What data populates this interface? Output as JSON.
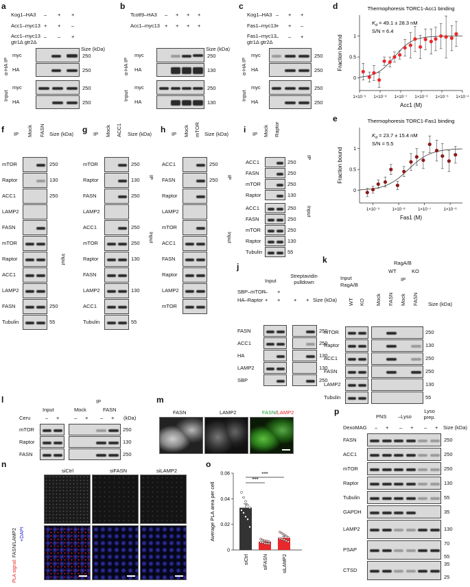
{
  "panel_letters": {
    "a": "a",
    "b": "b",
    "c": "c",
    "d": "d",
    "e": "e",
    "f": "f",
    "g": "g",
    "h": "h",
    "i": "i",
    "j": "j",
    "k": "k",
    "l": "l",
    "m": "m",
    "n": "n",
    "o": "o",
    "p": "p"
  },
  "common": {
    "size_kda": "Size (kDa)",
    "kda": "(kDa)",
    "ip": "IP",
    "input": "Input",
    "mock": "Mock",
    "minus": "–",
    "plus": "+"
  },
  "panel_a": {
    "ip_label": "α-HA IP",
    "rows": [
      "Kog1–HA3",
      "Acc1–myc13",
      "Acc1–myc13 gtr1Δ gtr2Δ"
    ],
    "signs": [
      [
        "–",
        "+",
        "+"
      ],
      [
        "+",
        "+",
        "–"
      ],
      [
        "–",
        "–",
        "+"
      ]
    ],
    "blots": [
      "myc",
      "HA",
      "myc",
      "HA"
    ],
    "sizes": [
      "250",
      "250",
      "250",
      "250"
    ]
  },
  "panel_b": {
    "ip_label": "α-HA IP",
    "rows": [
      "Tco89–HA3",
      "Acc1–myc13"
    ],
    "signs": [
      [
        "–",
        "+",
        "+",
        "+"
      ],
      [
        "+",
        "+",
        "+",
        "+"
      ]
    ],
    "blots": [
      "myc",
      "HA",
      "myc",
      "HA"
    ],
    "sizes": [
      "250",
      "130",
      "250",
      "130"
    ]
  },
  "panel_c": {
    "ip_label": "α-HA IP",
    "rows": [
      "Kog1–HA3",
      "Fas1–myc13",
      "Fas1–myc13 gtr1Δ gtr2Δ"
    ],
    "signs": [
      [
        "–",
        "+",
        "+"
      ],
      [
        "+",
        "+",
        "–"
      ],
      [
        "–",
        "–",
        "+"
      ]
    ],
    "blots": [
      "myc",
      "HA",
      "myc",
      "HA"
    ],
    "sizes": [
      "250",
      "250",
      "250",
      "250"
    ]
  },
  "panel_f": {
    "lanes": [
      "Mock",
      "FASN"
    ],
    "ip_blots": [
      "mTOR",
      "Raptor",
      "ACC1",
      "LAMP2",
      "FASN"
    ],
    "input_blots": [
      "mTOR",
      "Raptor",
      "ACC1",
      "LAMP2",
      "FASN",
      "Tubulin"
    ],
    "ip_sizes": [
      "250",
      "130",
      "250",
      "",
      ""
    ],
    "input_sizes": [
      "",
      "",
      "",
      "",
      "250",
      "55"
    ]
  },
  "panel_g": {
    "lanes": [
      "Mock",
      "ACC1"
    ],
    "ip_blots": [
      "mTOR",
      "Raptor",
      "FASN",
      "LAMP2",
      "ACC1"
    ],
    "input_blots": [
      "mTOR",
      "Raptor",
      "FASN",
      "LAMP2",
      "ACC1",
      "Tubulin"
    ],
    "ip_sizes": [
      "250",
      "130",
      "250",
      "",
      "250"
    ],
    "input_sizes": [
      "250",
      "130",
      "",
      "130",
      "",
      "55"
    ]
  },
  "panel_h": {
    "lanes": [
      "Mock",
      "mTOR"
    ],
    "ip_blots": [
      "ACC1",
      "FASN",
      "Raptor",
      "LAMP2",
      "mTOR"
    ],
    "input_blots": [
      "ACC1",
      "FASN",
      "Raptor",
      "LAMP2",
      "mTOR"
    ],
    "ip_sizes": [
      "250",
      "250",
      "",
      "",
      ""
    ],
    "input_sizes": [
      "",
      "",
      "",
      "",
      ""
    ]
  },
  "panel_i": {
    "lanes": [
      "Mock",
      "Raptor"
    ],
    "ip_blots": [
      "ACC1",
      "FASN",
      "mTOR",
      "Raptor"
    ],
    "input_blots": [
      "ACC1",
      "FASN",
      "mTOR",
      "Raptor",
      "Tubulin"
    ],
    "ip_sizes": [
      "250",
      "250",
      "250",
      "130"
    ],
    "input_sizes": [
      "250",
      "250",
      "250",
      "130",
      "55"
    ]
  },
  "panel_j": {
    "col_input": "Input",
    "col_pulldown": "Streptavidin pulldown",
    "rows": [
      "SBP–mTOR",
      "HA–Raptor"
    ],
    "signs": [
      [
        "–",
        "+"
      ],
      [
        "+",
        "+"
      ]
    ],
    "blots": [
      "FASN",
      "ACC1",
      "HA",
      "LAMP2",
      "SBP"
    ],
    "sizes": [
      "250",
      "250",
      "130",
      "130",
      "250"
    ]
  },
  "panel_k": {
    "ragab": "RagA/B",
    "wt": "WT",
    "ko": "KO",
    "lanes": [
      "WT",
      "KO",
      "Mock",
      "FASN",
      "Mock",
      "FASN"
    ],
    "blots": [
      "mTOR",
      "Raptor",
      "ACC1",
      "FASN",
      "LAMP2",
      "Tubulin"
    ],
    "sizes": [
      "250",
      "130",
      "250",
      "250",
      "130",
      "55"
    ]
  },
  "panel_l": {
    "ceru": "Ceru",
    "lanes": [
      "Mock",
      "FASN"
    ],
    "blots": [
      "mTOR",
      "Raptor",
      "FASN"
    ],
    "sizes": [
      "250",
      "130",
      "250"
    ]
  },
  "panel_m": {
    "titles": [
      "FASN",
      "LAMP2",
      "FASN",
      "LAMP2"
    ],
    "merge_sep": "/"
  },
  "panel_n": {
    "titles": [
      "siCtrl",
      "siFASN",
      "siLAMP2"
    ],
    "ylabel_top": "FASN/LAMP2",
    "ylabel_red": "PLA signal:",
    "ylabel_blue": "+DAPI"
  },
  "panel_p": {
    "groups": [
      "PNS",
      "–Lyso",
      "Lyso prep."
    ],
    "treatment": "DexoMAG",
    "blots": [
      "FASN",
      "ACC1",
      "mTOR",
      "Raptor",
      "Tubulin",
      "GAPDH",
      "LAMP2",
      "PSAP",
      "CTSD"
    ],
    "sizes": [
      [
        "250"
      ],
      [
        "250"
      ],
      [
        "250"
      ],
      [
        "130"
      ],
      [
        "55"
      ],
      [
        "35"
      ],
      [
        "130"
      ],
      [
        "70",
        "55"
      ],
      [
        "35",
        "25"
      ]
    ]
  },
  "chart_data": [
    {
      "type": "scatter",
      "title": "Thermophoresis TORC1-Acc1 binding",
      "annotation_kd": "49.1 ± 28.3 nM",
      "annotation_kd_prefix": "K",
      "annotation_kd_sub": "d",
      "annotation_sn": "S/N = 6.4",
      "xlabel": "Acc1 (M)",
      "ylabel": "Fraction bound",
      "xscale": "log",
      "xlim": [
        1e-09,
        0.0001
      ],
      "ylim": [
        -0.3,
        1.5
      ],
      "yticks": [
        0,
        0.5,
        1
      ],
      "xtick_labels": [
        "1×10⁻⁹",
        "1×10⁻⁸",
        "1×10⁻⁷",
        "1×10⁻⁶",
        "1×10⁻⁵",
        "1×10⁻⁴"
      ],
      "color": "#e8282b",
      "x": [
        1.5e-09,
        3e-09,
        5e-09,
        9e-09,
        1.6e-08,
        3e-08,
        5e-08,
        9e-08,
        1.6e-07,
        3e-07,
        5e-07,
        9e-07,
        1.6e-06,
        3e-06,
        5e-06,
        9e-06,
        1.6e-05,
        3e-05,
        5e-05
      ],
      "y": [
        0.15,
        0.02,
        0.12,
        -0.05,
        0.4,
        0.38,
        0.5,
        0.55,
        0.72,
        0.78,
        0.93,
        0.74,
        0.92,
        0.87,
        0.93,
        1.0,
        0.98,
        0.95,
        1.05
      ],
      "err": [
        0.2,
        0.12,
        0.18,
        0.18,
        0.1,
        0.12,
        0.12,
        0.1,
        0.2,
        0.3,
        0.3,
        0.28,
        0.25,
        0.3,
        0.28,
        0.3,
        0.5,
        0.3,
        0.3
      ]
    },
    {
      "type": "scatter",
      "title": "Thermophoresis TORC1-Fas1 binding",
      "annotation_kd": "23.7 ± 15.4 nM",
      "annotation_kd_prefix": "K",
      "annotation_kd_sub": "d",
      "annotation_sn": "S/N = 5.5",
      "xlabel": "Fas1 (M)",
      "ylabel": "Fraction bound",
      "xscale": "log",
      "xlim": [
        3e-10,
        3e-06
      ],
      "ylim": [
        -0.3,
        1.5
      ],
      "yticks": [
        0,
        0.5,
        1
      ],
      "xtick_labels": [
        "1×10⁻⁹",
        "1×10⁻⁸",
        "1×10⁻⁷",
        "1×10⁻⁶"
      ],
      "color": "#8b1a1a",
      "x": [
        6e-10,
        1e-09,
        1.6e-09,
        3e-09,
        5e-09,
        9e-09,
        1.6e-08,
        3e-08,
        5e-08,
        9e-08,
        1.6e-07,
        3e-07,
        5e-07,
        9e-07,
        1.6e-06
      ],
      "y": [
        -0.05,
        0.02,
        0.15,
        0.2,
        0.5,
        0.12,
        0.45,
        0.68,
        0.8,
        0.72,
        1.1,
        0.95,
        0.82,
        0.7,
        0.85
      ],
      "err": [
        0.1,
        0.08,
        0.1,
        0.12,
        0.12,
        0.1,
        0.12,
        0.2,
        0.2,
        0.2,
        0.2,
        0.25,
        0.3,
        0.25,
        0.2
      ]
    },
    {
      "type": "bar",
      "title": "",
      "categories": [
        "siCtrl",
        "siFASN",
        "siLAMP2"
      ],
      "values": [
        0.033,
        0.0065,
        0.0095
      ],
      "errors": [
        0.003,
        0.001,
        0.0012
      ],
      "points": [
        [
          0.045,
          0.041,
          0.038,
          0.035,
          0.033,
          0.031,
          0.029,
          0.026,
          0.024,
          0.018
        ],
        [
          0.0085,
          0.0078,
          0.0072,
          0.007,
          0.0065,
          0.006,
          0.0058,
          0.0052,
          0.005,
          0.0048
        ],
        [
          0.014,
          0.013,
          0.012,
          0.011,
          0.0098,
          0.009,
          0.0085,
          0.008,
          0.0072,
          0.0065
        ]
      ],
      "ylabel": "Average PLA area per cell",
      "ylim": [
        0,
        0.06
      ],
      "yticks": [
        "0",
        "0.02",
        "0.04",
        "0.06"
      ],
      "significance": [
        "***",
        "***"
      ],
      "bar_color": "#e8282b",
      "ctrl_color": "#333333"
    }
  ]
}
